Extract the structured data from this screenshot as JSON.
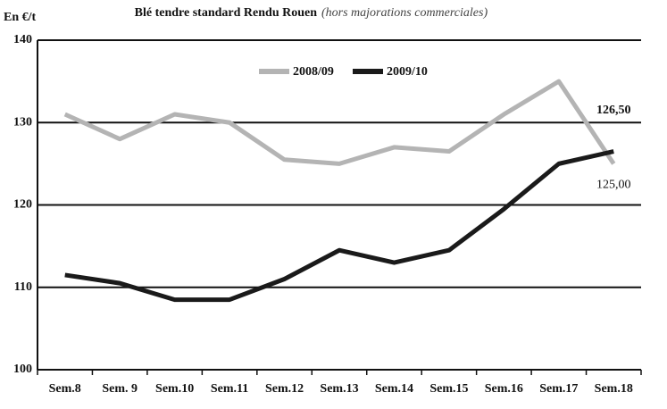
{
  "chart_data": {
    "type": "line",
    "title": "Blé tendre standard Rendu Rouen",
    "subtitle": "(hors majorations commerciales)",
    "y_label": "En €/t",
    "categories": [
      "Sem.8",
      "Sem. 9",
      "Sem.10",
      "Sem.11",
      "Sem.12",
      "Sem.13",
      "Sem.14",
      "Sem.15",
      "Sem.16",
      "Sem.17",
      "Sem.18"
    ],
    "series": [
      {
        "name": "2008/09",
        "color": "#b4b4b4",
        "values": [
          131,
          128,
          131,
          130,
          125.5,
          125,
          127,
          126.5,
          131,
          135,
          125
        ],
        "value_labels": [
          null,
          null,
          null,
          null,
          null,
          null,
          null,
          null,
          null,
          null,
          "125,00"
        ]
      },
      {
        "name": "2009/10",
        "color": "#1a1a1a",
        "values": [
          111.5,
          110.5,
          108.5,
          108.5,
          111,
          114.5,
          113,
          114.5,
          119.5,
          125,
          126.5
        ],
        "value_labels": [
          null,
          null,
          null,
          null,
          null,
          null,
          null,
          null,
          null,
          null,
          "126,50"
        ]
      }
    ],
    "ylim": [
      100,
      140
    ],
    "yticks": [
      100,
      110,
      120,
      130,
      140
    ],
    "grid": true
  }
}
